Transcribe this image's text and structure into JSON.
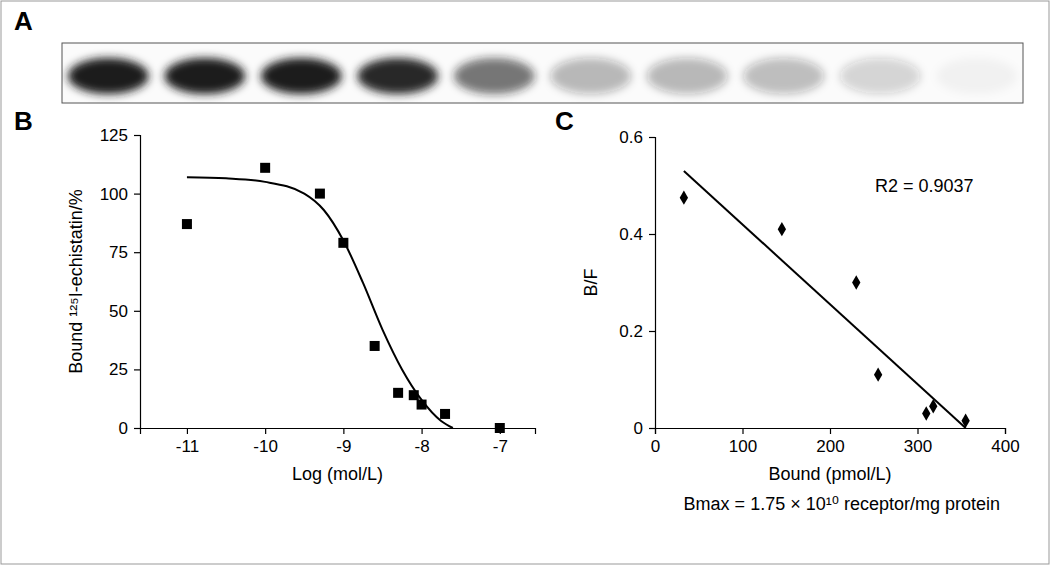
{
  "chart_data": [
    {
      "type": "blot",
      "title": "A",
      "values": [
        1,
        1,
        1,
        0.95,
        0.6,
        0.3,
        0.3,
        0.28,
        0.18,
        0.04
      ],
      "color": "#1a1a1a",
      "tick_labels": false
    },
    {
      "type": "scatter",
      "title": "B",
      "x_label": "Log (mol/L)",
      "y_label": "Bound ¹²⁵I-echistatin/%",
      "xlim": [
        -11.6,
        -6.55
      ],
      "xticks": [
        -11,
        -10,
        -9,
        -8,
        -7
      ],
      "ylim": [
        0,
        125
      ],
      "yticks": [
        0,
        25,
        50,
        75,
        100,
        125
      ],
      "series": [
        {
          "type": "scatter",
          "marker": "square",
          "color": "#000000",
          "x": [
            -11,
            -10,
            -9.3,
            -9,
            -8.6,
            -8.3,
            -8.1,
            -8,
            -7.7,
            -7
          ],
          "values": [
            87,
            111,
            100,
            79,
            35,
            15,
            14,
            10,
            6,
            0
          ]
        },
        {
          "type": "line",
          "line_style": "solid",
          "color": "#000000",
          "x": [
            -11,
            -10.5,
            -10,
            -9.5,
            -9.25,
            -9,
            -8.75,
            -8.5,
            -8.25,
            -8,
            -7.75,
            -7.6
          ],
          "values": [
            107,
            106.5,
            105,
            100,
            93,
            80,
            62,
            42,
            25,
            12,
            3,
            0
          ]
        }
      ]
    },
    {
      "type": "scatter",
      "title": "C",
      "x_label": "Bound (pmol/L)",
      "y_label": "B/F",
      "xlim": [
        0,
        400
      ],
      "xticks": [
        0,
        100,
        200,
        300,
        400
      ],
      "ylim": [
        0,
        0.6
      ],
      "yticks": [
        0,
        0.2,
        0.4,
        0.6
      ],
      "annotations": [
        "R2 = 0.9037",
        "Bmax = 1.75 × 10¹⁰ receptor/mg protein"
      ],
      "series": [
        {
          "type": "scatter",
          "marker": "diamond",
          "color": "#000000",
          "x": [
            33,
            145,
            230,
            255,
            310,
            318,
            355
          ],
          "values": [
            0.475,
            0.41,
            0.3,
            0.11,
            0.03,
            0.045,
            0.015
          ]
        },
        {
          "type": "line",
          "line_style": "solid",
          "color": "#000000",
          "x": [
            33,
            355
          ],
          "values": [
            0.53,
            0
          ]
        }
      ]
    }
  ]
}
